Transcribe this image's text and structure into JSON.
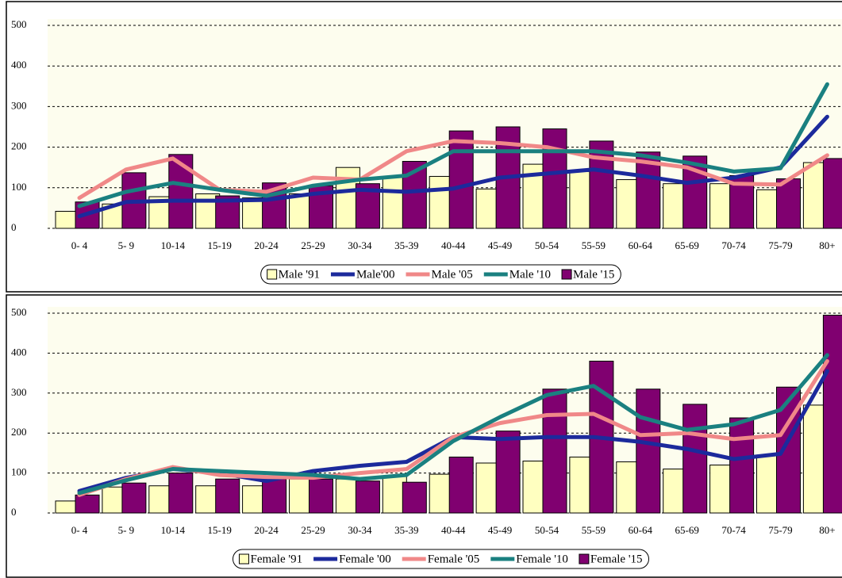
{
  "chart_data": [
    {
      "type": "combo",
      "categories": [
        "0- 4",
        "5- 9",
        "10-14",
        "15-19",
        "20-24",
        "25-29",
        "30-34",
        "35-39",
        "40-44",
        "45-49",
        "50-54",
        "55-59",
        "60-64",
        "65-69",
        "70-74",
        "75-79",
        "80+"
      ],
      "ylim": [
        0,
        500
      ],
      "yticks": [
        0,
        100,
        200,
        300,
        400,
        500
      ],
      "grid": true,
      "series": [
        {
          "name": "Male '91",
          "type": "bar",
          "color": "#ffffc0",
          "values": [
            42,
            60,
            78,
            85,
            75,
            85,
            150,
            125,
            128,
            97,
            158,
            140,
            120,
            110,
            110,
            95,
            162
          ]
        },
        {
          "name": "Male'00",
          "type": "line",
          "color": "#1c2a9c",
          "values": [
            30,
            65,
            68,
            68,
            70,
            85,
            95,
            90,
            98,
            125,
            135,
            145,
            130,
            112,
            125,
            150,
            275
          ]
        },
        {
          "name": "Male '05",
          "type": "line",
          "color": "#f08888",
          "values": [
            75,
            145,
            172,
            95,
            90,
            125,
            120,
            190,
            215,
            210,
            200,
            175,
            165,
            150,
            110,
            108,
            180
          ]
        },
        {
          "name": "Male '10",
          "type": "line",
          "color": "#1a8080",
          "values": [
            55,
            90,
            112,
            95,
            80,
            105,
            120,
            130,
            190,
            190,
            190,
            190,
            180,
            162,
            140,
            148,
            355
          ]
        },
        {
          "name": "Male '15",
          "type": "bar",
          "color": "#800070",
          "values": [
            65,
            137,
            182,
            80,
            112,
            105,
            110,
            165,
            240,
            250,
            245,
            215,
            188,
            178,
            130,
            122,
            172
          ]
        }
      ]
    },
    {
      "type": "combo",
      "categories": [
        "0- 4",
        "5- 9",
        "10-14",
        "15-19",
        "20-24",
        "25-29",
        "30-34",
        "35-39",
        "40-44",
        "45-49",
        "50-54",
        "55-59",
        "60-64",
        "65-69",
        "70-74",
        "75-79",
        "80+"
      ],
      "ylim": [
        0,
        500
      ],
      "yticks": [
        0,
        100,
        200,
        300,
        400,
        500
      ],
      "grid": true,
      "series": [
        {
          "name": "Female '91",
          "type": "bar",
          "color": "#ffffc0",
          "values": [
            30,
            65,
            68,
            68,
            68,
            85,
            85,
            92,
            97,
            125,
            130,
            140,
            128,
            110,
            120,
            145,
            270
          ]
        },
        {
          "name": "Female '00",
          "type": "line",
          "color": "#1c2a9c",
          "values": [
            55,
            88,
            110,
            100,
            80,
            105,
            118,
            128,
            190,
            185,
            190,
            190,
            178,
            160,
            135,
            148,
            355
          ]
        },
        {
          "name": "Female '05",
          "type": "line",
          "color": "#f08888",
          "values": [
            45,
            85,
            115,
            95,
            90,
            88,
            100,
            110,
            190,
            225,
            245,
            248,
            195,
            200,
            185,
            195,
            380
          ]
        },
        {
          "name": "Female '10",
          "type": "line",
          "color": "#1a8080",
          "values": [
            50,
            82,
            110,
            105,
            100,
            95,
            85,
            95,
            180,
            240,
            295,
            318,
            240,
            208,
            222,
            258,
            395
          ]
        },
        {
          "name": "Female '15",
          "type": "bar",
          "color": "#800070",
          "values": [
            45,
            75,
            100,
            85,
            85,
            85,
            80,
            77,
            140,
            205,
            310,
            380,
            310,
            272,
            238,
            315,
            495
          ]
        }
      ]
    }
  ]
}
